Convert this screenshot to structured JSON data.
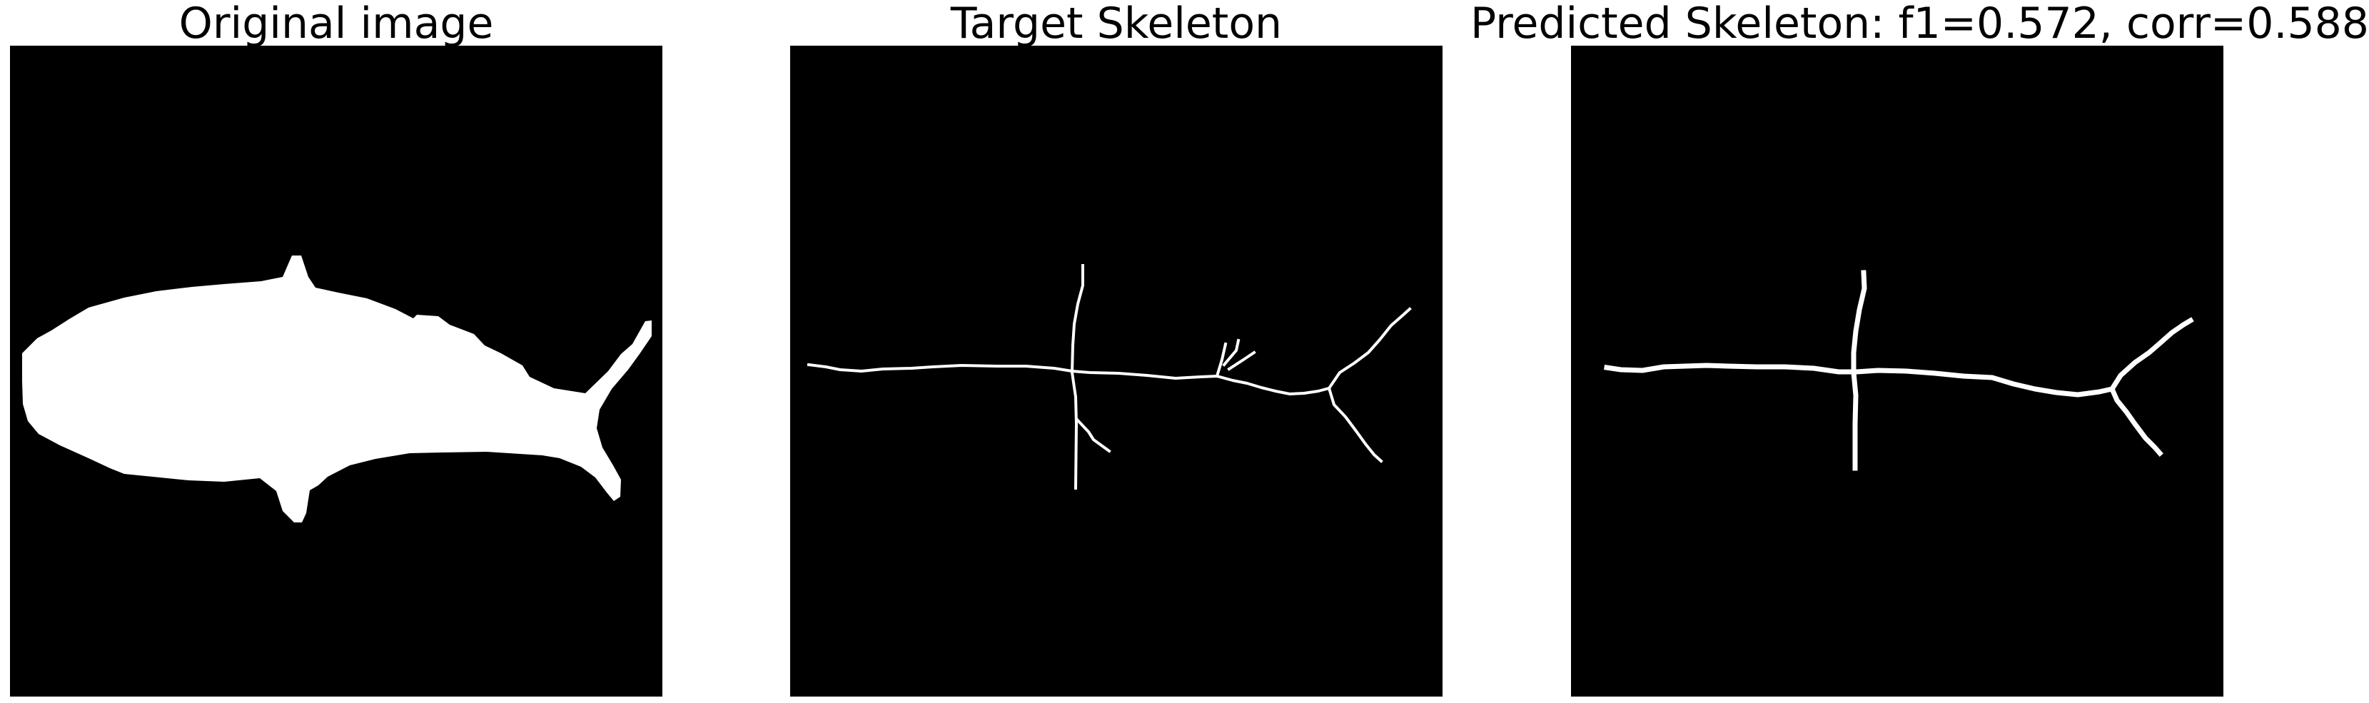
{
  "panels": [
    {
      "title": "Original image"
    },
    {
      "title": "Target Skeleton"
    },
    {
      "title": "Predicted Skeleton: f1=0.572, corr=0.588"
    }
  ],
  "colors": {
    "background": "#000000",
    "foreground": "#ffffff"
  }
}
